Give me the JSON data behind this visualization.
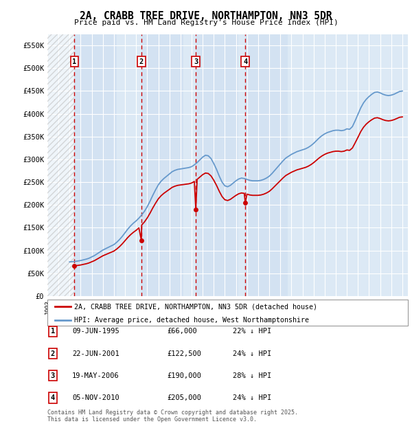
{
  "title": "2A, CRABB TREE DRIVE, NORTHAMPTON, NN3 5DR",
  "subtitle": "Price paid vs. HM Land Registry's House Price Index (HPI)",
  "background_color": "#ffffff",
  "chart_bg_color": "#dce9f5",
  "ylim": [
    0,
    575000
  ],
  "yticks": [
    0,
    50000,
    100000,
    150000,
    200000,
    250000,
    300000,
    350000,
    400000,
    450000,
    500000,
    550000
  ],
  "ytick_labels": [
    "£0",
    "£50K",
    "£100K",
    "£150K",
    "£200K",
    "£250K",
    "£300K",
    "£350K",
    "£400K",
    "£450K",
    "£500K",
    "£550K"
  ],
  "xmin": 1993.0,
  "xmax": 2025.5,
  "sale_color": "#cc0000",
  "hpi_color": "#6699cc",
  "sale_label": "2A, CRABB TREE DRIVE, NORTHAMPTON, NN3 5DR (detached house)",
  "hpi_label": "HPI: Average price, detached house, West Northamptonshire",
  "footnote": "Contains HM Land Registry data © Crown copyright and database right 2025.\nThis data is licensed under the Open Government Licence v3.0.",
  "sales": [
    {
      "num": 1,
      "date_str": "09-JUN-1995",
      "price": 66000,
      "pct": "22%",
      "year": 1995.44
    },
    {
      "num": 2,
      "date_str": "22-JUN-2001",
      "price": 122500,
      "pct": "24%",
      "year": 2001.47
    },
    {
      "num": 3,
      "date_str": "19-MAY-2006",
      "price": 190000,
      "pct": "28%",
      "year": 2006.38
    },
    {
      "num": 4,
      "date_str": "05-NOV-2010",
      "price": 205000,
      "pct": "24%",
      "year": 2010.84
    }
  ],
  "hpi_raw": [
    [
      1995,
      75000
    ],
    [
      1995.25,
      75500
    ],
    [
      1995.5,
      76000
    ],
    [
      1995.75,
      77000
    ],
    [
      1996,
      78000
    ],
    [
      1996.25,
      79500
    ],
    [
      1996.5,
      81000
    ],
    [
      1996.75,
      83000
    ],
    [
      1997,
      86000
    ],
    [
      1997.25,
      89000
    ],
    [
      1997.5,
      93000
    ],
    [
      1997.75,
      97000
    ],
    [
      1998,
      101000
    ],
    [
      1998.25,
      104000
    ],
    [
      1998.5,
      107000
    ],
    [
      1998.75,
      110000
    ],
    [
      1999,
      113000
    ],
    [
      1999.25,
      118000
    ],
    [
      1999.5,
      124000
    ],
    [
      1999.75,
      131000
    ],
    [
      2000,
      139000
    ],
    [
      2000.25,
      147000
    ],
    [
      2000.5,
      154000
    ],
    [
      2000.75,
      160000
    ],
    [
      2001,
      165000
    ],
    [
      2001.25,
      171000
    ],
    [
      2001.5,
      178000
    ],
    [
      2001.75,
      186000
    ],
    [
      2002,
      196000
    ],
    [
      2002.25,
      208000
    ],
    [
      2002.5,
      221000
    ],
    [
      2002.75,
      233000
    ],
    [
      2003,
      244000
    ],
    [
      2003.25,
      252000
    ],
    [
      2003.5,
      258000
    ],
    [
      2003.75,
      263000
    ],
    [
      2004,
      268000
    ],
    [
      2004.25,
      273000
    ],
    [
      2004.5,
      276000
    ],
    [
      2004.75,
      278000
    ],
    [
      2005,
      279000
    ],
    [
      2005.25,
      280000
    ],
    [
      2005.5,
      281000
    ],
    [
      2005.75,
      282000
    ],
    [
      2006,
      284000
    ],
    [
      2006.25,
      288000
    ],
    [
      2006.5,
      293000
    ],
    [
      2006.75,
      299000
    ],
    [
      2007,
      305000
    ],
    [
      2007.25,
      309000
    ],
    [
      2007.5,
      308000
    ],
    [
      2007.75,
      302000
    ],
    [
      2008,
      291000
    ],
    [
      2008.25,
      278000
    ],
    [
      2008.5,
      263000
    ],
    [
      2008.75,
      250000
    ],
    [
      2009,
      242000
    ],
    [
      2009.25,
      240000
    ],
    [
      2009.5,
      243000
    ],
    [
      2009.75,
      248000
    ],
    [
      2010,
      253000
    ],
    [
      2010.25,
      257000
    ],
    [
      2010.5,
      259000
    ],
    [
      2010.75,
      258000
    ],
    [
      2011,
      256000
    ],
    [
      2011.25,
      254000
    ],
    [
      2011.5,
      253000
    ],
    [
      2011.75,
      253000
    ],
    [
      2012,
      253000
    ],
    [
      2012.25,
      254000
    ],
    [
      2012.5,
      256000
    ],
    [
      2012.75,
      259000
    ],
    [
      2013,
      263000
    ],
    [
      2013.25,
      269000
    ],
    [
      2013.5,
      276000
    ],
    [
      2013.75,
      283000
    ],
    [
      2014,
      290000
    ],
    [
      2014.25,
      297000
    ],
    [
      2014.5,
      303000
    ],
    [
      2014.75,
      307000
    ],
    [
      2015,
      311000
    ],
    [
      2015.25,
      314000
    ],
    [
      2015.5,
      317000
    ],
    [
      2015.75,
      319000
    ],
    [
      2016,
      321000
    ],
    [
      2016.25,
      323000
    ],
    [
      2016.5,
      326000
    ],
    [
      2016.75,
      330000
    ],
    [
      2017,
      335000
    ],
    [
      2017.25,
      341000
    ],
    [
      2017.5,
      347000
    ],
    [
      2017.75,
      352000
    ],
    [
      2018,
      356000
    ],
    [
      2018.25,
      359000
    ],
    [
      2018.5,
      361000
    ],
    [
      2018.75,
      363000
    ],
    [
      2019,
      364000
    ],
    [
      2019.25,
      364000
    ],
    [
      2019.5,
      363000
    ],
    [
      2019.75,
      364000
    ],
    [
      2020,
      367000
    ],
    [
      2020.25,
      366000
    ],
    [
      2020.5,
      372000
    ],
    [
      2020.75,
      385000
    ],
    [
      2021,
      399000
    ],
    [
      2021.25,
      413000
    ],
    [
      2021.5,
      424000
    ],
    [
      2021.75,
      432000
    ],
    [
      2022,
      438000
    ],
    [
      2022.25,
      443000
    ],
    [
      2022.5,
      447000
    ],
    [
      2022.75,
      448000
    ],
    [
      2023,
      446000
    ],
    [
      2023.25,
      443000
    ],
    [
      2023.5,
      441000
    ],
    [
      2023.75,
      440000
    ],
    [
      2024,
      441000
    ],
    [
      2024.25,
      443000
    ],
    [
      2024.5,
      446000
    ],
    [
      2024.75,
      449000
    ],
    [
      2025,
      450000
    ]
  ],
  "sale_hpi_scaled": [
    [
      1995.44,
      66000
    ],
    [
      1995.5,
      66450
    ],
    [
      1995.75,
      67350
    ],
    [
      1996,
      68250
    ],
    [
      1996.25,
      69600
    ],
    [
      1996.5,
      70900
    ],
    [
      1996.75,
      72700
    ],
    [
      1997,
      75300
    ],
    [
      1997.25,
      77900
    ],
    [
      1997.5,
      81400
    ],
    [
      1997.75,
      84900
    ],
    [
      1998,
      88400
    ],
    [
      1998.25,
      91000
    ],
    [
      1998.5,
      93600
    ],
    [
      1998.75,
      96200
    ],
    [
      1999,
      98800
    ],
    [
      1999.25,
      103200
    ],
    [
      1999.5,
      108400
    ],
    [
      1999.75,
      114600
    ],
    [
      2000,
      121600
    ],
    [
      2000.25,
      128600
    ],
    [
      2000.5,
      134700
    ],
    [
      2000.75,
      139900
    ],
    [
      2001,
      144300
    ],
    [
      2001.25,
      149600
    ],
    [
      2001.47,
      122500
    ],
    [
      2001.5,
      155800
    ],
    [
      2001.75,
      162700
    ],
    [
      2002,
      171400
    ],
    [
      2002.25,
      181800
    ],
    [
      2002.5,
      193300
    ],
    [
      2002.75,
      203700
    ],
    [
      2003,
      213300
    ],
    [
      2003.25,
      220200
    ],
    [
      2003.5,
      225500
    ],
    [
      2003.75,
      229900
    ],
    [
      2004,
      234200
    ],
    [
      2004.25,
      238600
    ],
    [
      2004.5,
      241200
    ],
    [
      2004.75,
      243000
    ],
    [
      2005,
      243900
    ],
    [
      2005.25,
      244700
    ],
    [
      2005.5,
      245600
    ],
    [
      2005.75,
      246400
    ],
    [
      2006,
      248100
    ],
    [
      2006.25,
      251600
    ],
    [
      2006.38,
      190000
    ],
    [
      2006.5,
      256100
    ],
    [
      2006.75,
      261300
    ],
    [
      2007,
      266500
    ],
    [
      2007.25,
      270000
    ],
    [
      2007.5,
      269100
    ],
    [
      2007.75,
      263800
    ],
    [
      2008,
      254300
    ],
    [
      2008.25,
      242900
    ],
    [
      2008.5,
      229800
    ],
    [
      2008.75,
      218400
    ],
    [
      2009,
      211400
    ],
    [
      2009.25,
      209700
    ],
    [
      2009.5,
      212300
    ],
    [
      2009.75,
      216700
    ],
    [
      2010,
      221000
    ],
    [
      2010.25,
      224500
    ],
    [
      2010.5,
      226300
    ],
    [
      2010.75,
      225400
    ],
    [
      2010.84,
      205000
    ],
    [
      2011,
      223700
    ],
    [
      2011.25,
      221900
    ],
    [
      2011.5,
      221100
    ],
    [
      2011.75,
      221100
    ],
    [
      2012,
      221100
    ],
    [
      2012.25,
      221900
    ],
    [
      2012.5,
      223600
    ],
    [
      2012.75,
      226200
    ],
    [
      2013,
      229700
    ],
    [
      2013.25,
      235000
    ],
    [
      2013.5,
      241100
    ],
    [
      2013.75,
      247200
    ],
    [
      2014,
      253300
    ],
    [
      2014.25,
      259400
    ],
    [
      2014.5,
      264700
    ],
    [
      2014.75,
      268200
    ],
    [
      2015,
      271700
    ],
    [
      2015.25,
      274400
    ],
    [
      2015.5,
      277000
    ],
    [
      2015.75,
      278700
    ],
    [
      2016,
      280500
    ],
    [
      2016.25,
      282200
    ],
    [
      2016.5,
      284800
    ],
    [
      2016.75,
      288300
    ],
    [
      2017,
      292700
    ],
    [
      2017.25,
      297900
    ],
    [
      2017.5,
      303100
    ],
    [
      2017.75,
      307500
    ],
    [
      2018,
      311000
    ],
    [
      2018.25,
      313700
    ],
    [
      2018.5,
      315400
    ],
    [
      2018.75,
      317100
    ],
    [
      2019,
      318000
    ],
    [
      2019.25,
      318000
    ],
    [
      2019.5,
      317100
    ],
    [
      2019.75,
      318000
    ],
    [
      2020,
      320600
    ],
    [
      2020.25,
      319800
    ],
    [
      2020.5,
      325000
    ],
    [
      2020.75,
      336500
    ],
    [
      2021,
      348500
    ],
    [
      2021.25,
      360900
    ],
    [
      2021.5,
      370500
    ],
    [
      2021.75,
      377500
    ],
    [
      2022,
      382800
    ],
    [
      2022.25,
      387100
    ],
    [
      2022.5,
      390600
    ],
    [
      2022.75,
      391500
    ],
    [
      2023,
      389700
    ],
    [
      2023.25,
      387100
    ],
    [
      2023.5,
      385300
    ],
    [
      2023.75,
      384500
    ],
    [
      2024,
      385300
    ],
    [
      2024.25,
      387100
    ],
    [
      2024.5,
      389700
    ],
    [
      2024.75,
      392400
    ],
    [
      2025,
      393200
    ]
  ]
}
